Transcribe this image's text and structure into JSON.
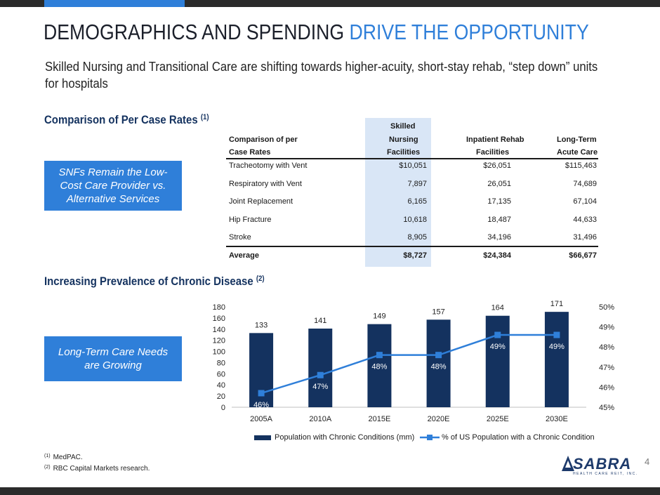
{
  "header": {
    "title_main": "DEMOGRAPHICS AND SPENDING ",
    "title_accent": "DRIVE THE OPPORTUNITY",
    "subtitle": "Skilled Nursing and Transitional Care are shifting towards higher-acuity, short-stay rehab, “step down” units for hospitals"
  },
  "section1": {
    "title": "Comparison of Per Case Rates ",
    "title_sup": "(1)",
    "callout": "SNFs Remain the Low-Cost Care Provider vs. Alternative Services"
  },
  "section2": {
    "title": "Increasing Prevalence of Chronic Disease ",
    "title_sup": "(2)",
    "callout": "Long-Term Care Needs are Growing"
  },
  "table": {
    "header_col1_line1": "Comparison of per",
    "header_col1_line2": "Case Rates",
    "header_col2_line1": "Skilled",
    "header_col2_line2": "Nursing",
    "header_col2_line3": "Facilities",
    "header_col3_line1": "Inpatient Rehab",
    "header_col3_line2": "Facilities",
    "header_col4_line1": "Long-Term",
    "header_col4_line2": "Acute Care",
    "rows": [
      {
        "label": "Tracheotomy with Vent",
        "snf": "$10,051",
        "irf": "$26,051",
        "ltac": "$115,463"
      },
      {
        "label": "Respiratory with Vent",
        "snf": "7,897",
        "irf": "26,051",
        "ltac": "74,689"
      },
      {
        "label": "Joint Replacement",
        "snf": "6,165",
        "irf": "17,135",
        "ltac": "67,104"
      },
      {
        "label": "Hip Fracture",
        "snf": "10,618",
        "irf": "18,487",
        "ltac": "44,633"
      },
      {
        "label": "Stroke",
        "snf": "8,905",
        "irf": "34,196",
        "ltac": "31,496"
      }
    ],
    "average": {
      "label": "Average",
      "snf": "$8,727",
      "irf": "$24,384",
      "ltac": "$66,677"
    }
  },
  "chart_data": {
    "type": "bar",
    "categories": [
      "2005A",
      "2010A",
      "2015E",
      "2020E",
      "2025E",
      "2030E"
    ],
    "series": [
      {
        "name": "Population with Chronic Conditions (mm)",
        "type": "bar",
        "axis": "left",
        "values": [
          133,
          141,
          149,
          157,
          164,
          171
        ],
        "labels": [
          "133",
          "141",
          "149",
          "157",
          "164",
          "171"
        ],
        "color": "#14325f"
      },
      {
        "name": "% of US Population with a Chronic Condition",
        "type": "line",
        "axis": "right",
        "values": [
          45.7,
          46.6,
          47.6,
          47.6,
          48.6,
          48.6
        ],
        "labels": [
          "46%",
          "47%",
          "48%",
          "48%",
          "49%",
          "49%"
        ],
        "color": "#2f7fd9"
      }
    ],
    "y_left": {
      "min": 0,
      "max": 180,
      "ticks": [
        "0",
        "20",
        "40",
        "60",
        "80",
        "100",
        "120",
        "140",
        "160",
        "180"
      ]
    },
    "y_right": {
      "min": 45,
      "max": 50,
      "ticks": [
        "45%",
        "46%",
        "47%",
        "48%",
        "49%",
        "50%"
      ]
    },
    "legend_position": "bottom"
  },
  "footnotes": [
    {
      "mark": "(1)",
      "text": "MedPAC."
    },
    {
      "mark": "(2)",
      "text": "RBC Capital Markets research."
    }
  ],
  "page_number": "4",
  "logo": {
    "name": "SABRA",
    "tagline": "HEALTH CARE REIT, INC."
  }
}
